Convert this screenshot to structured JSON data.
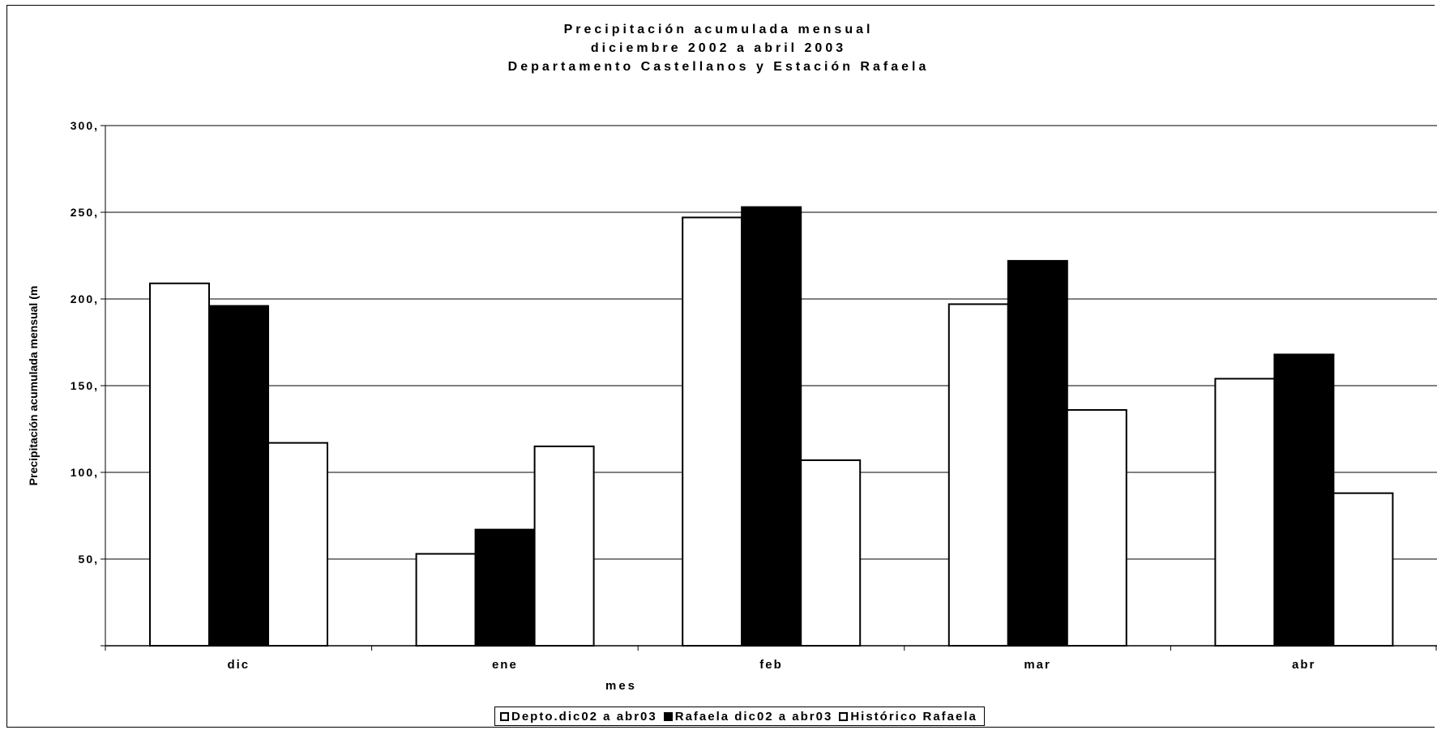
{
  "chart_data": {
    "type": "bar",
    "title_lines": [
      "Precipitación acumulada mensual",
      "diciembre 2002 a abril 2003",
      "Departamento Castellanos y Estación Rafaela"
    ],
    "xlabel": "mes",
    "ylabel": "Precipitación acumulada mensual (m",
    "categories": [
      "dic",
      "ene",
      "feb",
      "mar",
      "abr"
    ],
    "ylim": [
      0,
      300
    ],
    "yticks": [
      0,
      50,
      100,
      150,
      200,
      250,
      300
    ],
    "ytick_labels": [
      "",
      "50,",
      "100,",
      "150,",
      "200,",
      "250,",
      "300,"
    ],
    "grid": true,
    "legend_position": "bottom",
    "series": [
      {
        "name": "Depto.dic02 a abr03",
        "values": [
          209,
          53,
          247,
          197,
          154
        ],
        "fill": "#ffffff"
      },
      {
        "name": "Rafaela dic02 a abr03",
        "values": [
          196,
          67,
          253,
          222,
          168
        ],
        "fill": "#000000"
      },
      {
        "name": "Histórico Rafaela",
        "values": [
          117,
          115,
          107,
          136,
          88
        ],
        "fill": "#ffffff"
      }
    ]
  }
}
